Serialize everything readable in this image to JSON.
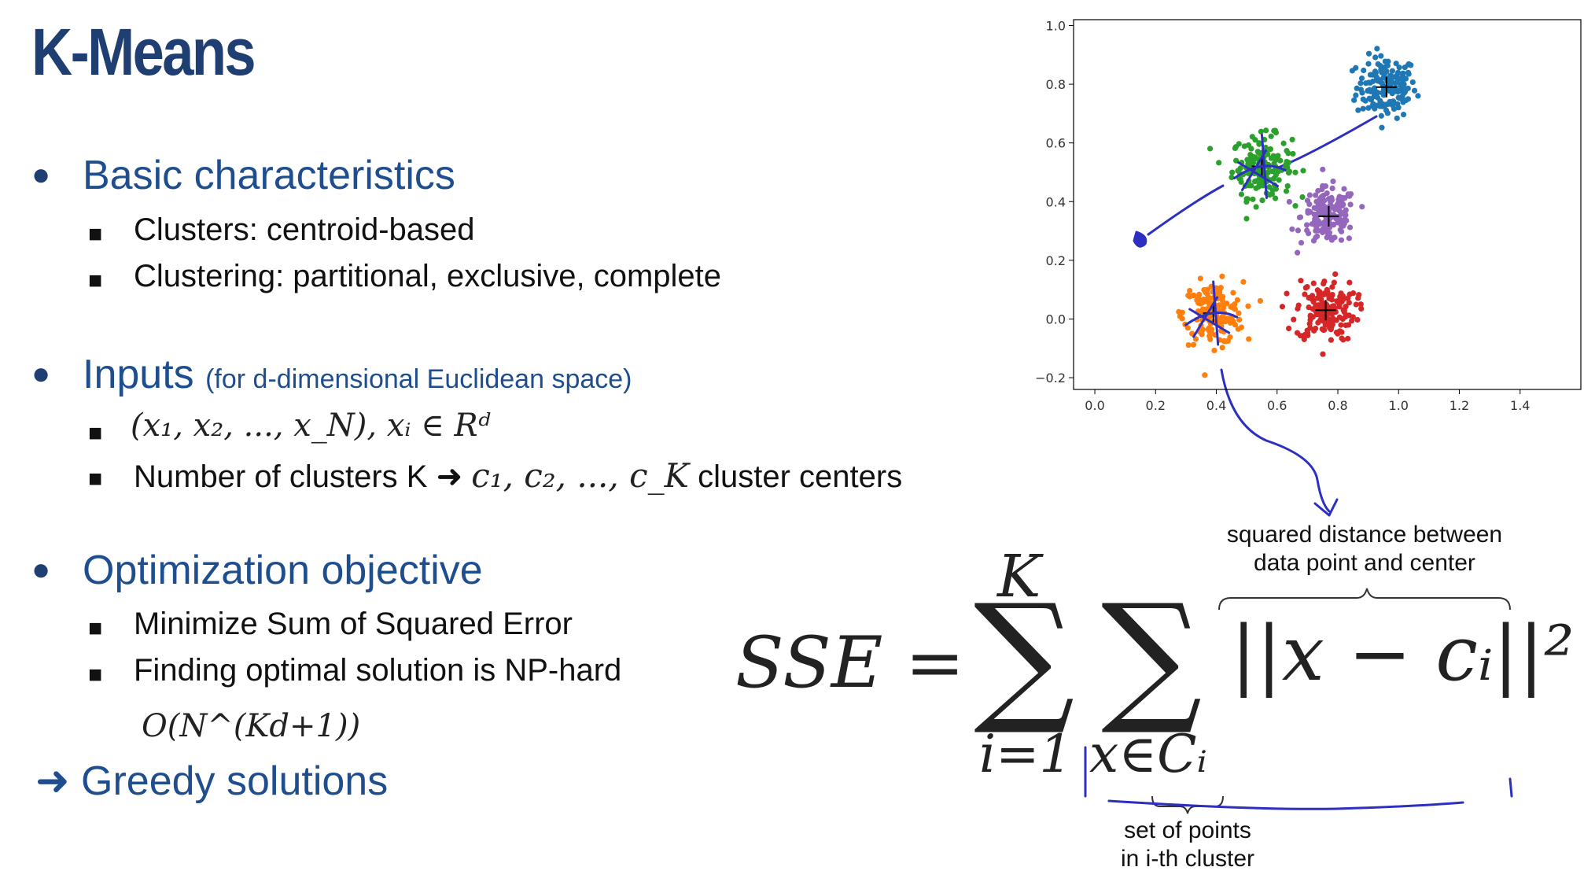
{
  "title": "K-Means",
  "sections": [
    {
      "heading": "Basic characteristics",
      "heading_note": "",
      "items": [
        "Clusters: centroid-based",
        "Clustering: partitional, exclusive, complete"
      ]
    },
    {
      "heading": "Inputs",
      "heading_note": "(for d-dimensional Euclidean space)",
      "item1_math": "(x₁, x₂, ..., x_N),  xᵢ ∈ Rᵈ",
      "item2_prefix": "Number of clusters K ➜",
      "item2_math": "c₁, c₂, ..., c_K",
      "item2_suffix": "cluster centers"
    },
    {
      "heading": "Optimization objective",
      "heading_note": "",
      "items": [
        "Minimize Sum of Squared Error",
        "Finding optimal solution is NP-hard"
      ],
      "complexity": "O(N^(Kd+1))"
    }
  ],
  "conclusion": "➜ Greedy solutions",
  "formula": {
    "lhs": "SSE =",
    "sum1_top": "K",
    "sum1_bottom": "i=1",
    "sum2_bottom": "x∈Cᵢ",
    "summand": "||x − cᵢ||²"
  },
  "annotations": {
    "squared_distance_line1": "squared distance between",
    "squared_distance_line2": "data point and center",
    "set_points_line1": "set of points",
    "set_points_line2": "in i-th cluster"
  },
  "colors": {
    "title": "#1f3e72",
    "heading": "#1f4e8f",
    "pen": "#2d2fc0"
  },
  "chart_data": {
    "type": "scatter",
    "title": "",
    "xlabel": "",
    "ylabel": "",
    "xlim": [
      -0.07,
      1.6
    ],
    "ylim": [
      -0.24,
      1.02
    ],
    "xticks": [
      "0.0",
      "0.2",
      "0.4",
      "0.6",
      "0.8",
      "1.0",
      "1.2",
      "1.4"
    ],
    "yticks": [
      "1.0",
      "0.8",
      "0.6",
      "0.4",
      "0.2",
      "0.0",
      "−0.2"
    ],
    "grid": false,
    "clusters": [
      {
        "color": "#1f77b4",
        "center": [
          0.96,
          0.79
        ],
        "spread": 0.07,
        "count": 160
      },
      {
        "color": "#2ca02c",
        "center": [
          0.55,
          0.52
        ],
        "spread": 0.07,
        "count": 160
      },
      {
        "color": "#9467bd",
        "center": [
          0.77,
          0.35
        ],
        "spread": 0.065,
        "count": 160
      },
      {
        "color": "#ff7f0e",
        "center": [
          0.39,
          0.02
        ],
        "spread": 0.07,
        "count": 160
      },
      {
        "color": "#d62728",
        "center": [
          0.76,
          0.03
        ],
        "spread": 0.07,
        "count": 160
      }
    ],
    "centroids": [
      [
        0.96,
        0.79
      ],
      [
        0.55,
        0.52
      ],
      [
        0.77,
        0.35
      ],
      [
        0.39,
        0.02
      ],
      [
        0.76,
        0.03
      ]
    ]
  }
}
